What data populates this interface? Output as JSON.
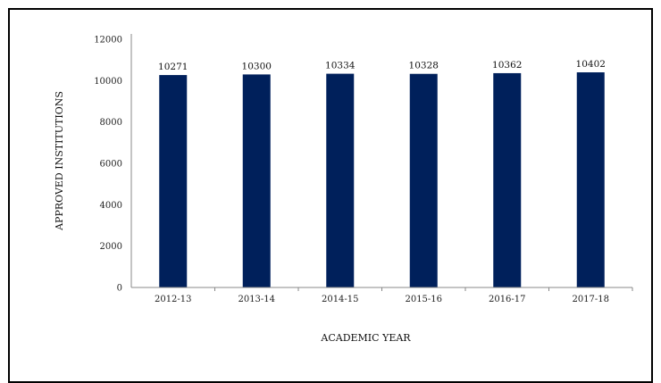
{
  "chart_data": {
    "type": "bar",
    "title": "",
    "xlabel": "ACADEMIC YEAR",
    "ylabel": "APPROVED INSTITUTIONS",
    "categories": [
      "2012-13",
      "2013-14",
      "2014-15",
      "2015-16",
      "2016-17",
      "2017-18"
    ],
    "values": [
      10271,
      10300,
      10334,
      10328,
      10362,
      10402
    ],
    "data_labels": [
      "10271",
      "10300",
      "10334",
      "10328",
      "10362",
      "10402"
    ],
    "ylim": [
      0,
      12000
    ],
    "yticks": [
      0,
      2000,
      4000,
      6000,
      8000,
      10000,
      12000
    ],
    "grid": false,
    "legend": "none",
    "colors": {
      "bar": "#00205b",
      "axis": "#888888"
    }
  }
}
